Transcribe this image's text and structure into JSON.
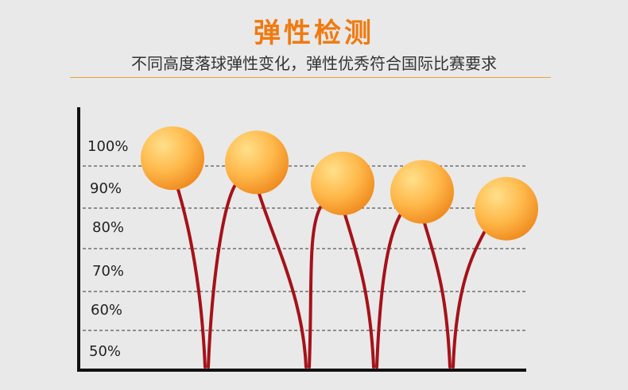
{
  "header": {
    "title": "弹性检测",
    "subtitle": "不同高度落球弹性变化，弹性优秀符合国际比赛要求"
  },
  "colors": {
    "title": "#f07a10",
    "divider": "#f0a040",
    "arc": "#a5121a",
    "ball_light": "#ffe08a",
    "ball_mid": "#ffb84a",
    "ball_dark": "#ef8a1e"
  },
  "chart_data": {
    "type": "scatter",
    "title": "",
    "xlabel": "",
    "ylabel": "",
    "y_tick_labels": [
      "100%",
      "90%",
      "80%",
      "70%",
      "60%",
      "50%"
    ],
    "grid": "dashed-horizontal",
    "series": [
      {
        "values": [
          93,
          92,
          87,
          85,
          81
        ]
      }
    ]
  }
}
